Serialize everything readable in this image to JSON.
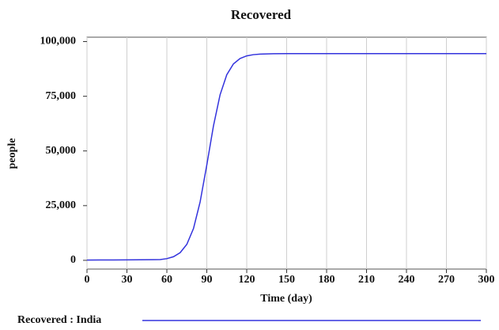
{
  "chart_data": {
    "type": "line",
    "title": "Recovered",
    "x_label": "Time (day)",
    "y_label": "people",
    "x": [
      0,
      10,
      20,
      30,
      40,
      50,
      55,
      60,
      65,
      70,
      75,
      80,
      85,
      90,
      95,
      100,
      105,
      110,
      115,
      120,
      125,
      130,
      140,
      150,
      160,
      180,
      210,
      240,
      270,
      300
    ],
    "series": [
      {
        "name": "Recovered : India",
        "color": "#3333dd",
        "values": [
          100,
          150,
          180,
          200,
          250,
          300,
          355,
          768,
          1650,
          3500,
          7300,
          14540,
          26730,
          43590,
          61440,
          75720,
          84830,
          89780,
          92270,
          93460,
          94020,
          94270,
          94450,
          94490,
          94500,
          94500,
          94500,
          94500,
          94500,
          94500
        ]
      }
    ],
    "xlim": [
      0,
      300
    ],
    "xticks": [
      0,
      30,
      60,
      90,
      120,
      150,
      180,
      210,
      240,
      270,
      300
    ],
    "ylim": [
      -4000,
      102000
    ],
    "yticks": [
      0,
      {
        "value": 25000,
        "label": "25,000"
      },
      {
        "value": 50000,
        "label": "50,000"
      },
      {
        "value": 75000,
        "label": "75,000"
      },
      {
        "value": 100000,
        "label": "100,000"
      }
    ],
    "grid": true,
    "legend": "bottom"
  }
}
